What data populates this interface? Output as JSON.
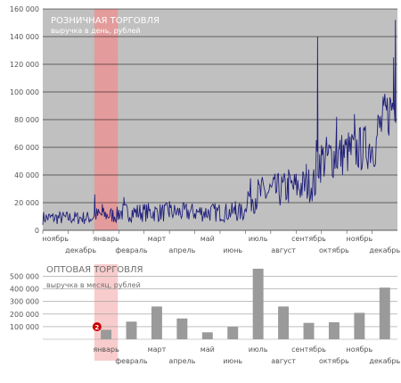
{
  "colors": {
    "plot_bg": "#c0c0c0",
    "line": "#1f1f7a",
    "highlight": "#f08f8f",
    "bar": "#9a9a9a",
    "grid": "#000000",
    "text": "#555555",
    "title_text": "#ffffff",
    "marker": "#cc0000"
  },
  "chart_data": [
    {
      "type": "line",
      "title": "РОЗНИЧНАЯ ТОРГОВЛЯ",
      "subtitle": "выручка в день, рублей",
      "y_ticks": [
        "0",
        "20 000",
        "40 000",
        "60 000",
        "80 000",
        "100 000",
        "120 000",
        "140 000",
        "160 000"
      ],
      "ylim": [
        0,
        160000
      ],
      "month_labels": [
        {
          "label": "ноябрь",
          "row": 1
        },
        {
          "label": "декабрь",
          "row": 2
        },
        {
          "label": "январь",
          "row": 1
        },
        {
          "label": "февраль",
          "row": 2
        },
        {
          "label": "март",
          "row": 1
        },
        {
          "label": "апрель",
          "row": 2
        },
        {
          "label": "май",
          "row": 1
        },
        {
          "label": "июнь",
          "row": 2
        },
        {
          "label": "июль",
          "row": 1
        },
        {
          "label": "август",
          "row": 2
        },
        {
          "label": "сентябрь",
          "row": 1
        },
        {
          "label": "октябрь",
          "row": 2
        },
        {
          "label": "ноябрь",
          "row": 1
        },
        {
          "label": "декабрь",
          "row": 2
        }
      ],
      "highlight_month": "январь",
      "series": [
        {
          "segments": [
            {
              "months": [
                0,
                2
              ],
              "base": 9000,
              "amp": 5000
            },
            {
              "months": [
                2,
                3
              ],
              "base": 11000,
              "amp": 6000,
              "spikes": [
                {
                  "x": 2.05,
                  "y": 26000
                },
                {
                  "x": 2.35,
                  "y": 19000
                }
              ]
            },
            {
              "months": [
                3,
                8
              ],
              "base": 13000,
              "amp": 7000,
              "spikes": [
                {
                  "x": 3.2,
                  "y": 24000
                },
                {
                  "x": 5.0,
                  "y": 21000
                },
                {
                  "x": 7.6,
                  "y": 21000
                }
              ]
            },
            {
              "months": [
                8,
                10.8
              ],
              "base": 24000,
              "amp": 13000,
              "trend_to": 34000,
              "spikes": [
                {
                  "x": 9.7,
                  "y": 44000
                },
                {
                  "x": 10.4,
                  "y": 48000
                }
              ]
            },
            {
              "months": [
                10.8,
                13.2
              ],
              "base": 50000,
              "amp": 17000,
              "trend_to": 62000,
              "spikes": [
                {
                  "x": 10.85,
                  "y": 140000
                },
                {
                  "x": 11.6,
                  "y": 82000
                },
                {
                  "x": 12.3,
                  "y": 84000
                }
              ]
            },
            {
              "months": [
                13.2,
                13.95
              ],
              "base": 70000,
              "amp": 20000,
              "trend_to": 95000,
              "spikes": [
                {
                  "x": 13.55,
                  "y": 90000
                },
                {
                  "x": 13.85,
                  "y": 125000
                },
                {
                  "x": 13.92,
                  "y": 152000
                }
              ]
            }
          ]
        }
      ]
    },
    {
      "type": "bar",
      "title": "ОПТОВАЯ ТОРГОВЛЯ",
      "subtitle": "выручка в месяц, рублей",
      "y_ticks": [
        "100 000",
        "200 000",
        "300 000",
        "400 000",
        "500 000"
      ],
      "ylim": [
        0,
        560000
      ],
      "categories": [
        "январь",
        "февраль",
        "март",
        "апрель",
        "май",
        "июнь",
        "июль",
        "август",
        "сентябрь",
        "октябрь",
        "ноябрь",
        "декабрь"
      ],
      "category_rows": [
        1,
        2,
        1,
        2,
        1,
        2,
        1,
        2,
        1,
        2,
        1,
        2
      ],
      "values": [
        75000,
        140000,
        260000,
        165000,
        55000,
        100000,
        560000,
        260000,
        130000,
        135000,
        210000,
        410000
      ],
      "highlight_category": "январь",
      "marker_label": "2"
    }
  ]
}
